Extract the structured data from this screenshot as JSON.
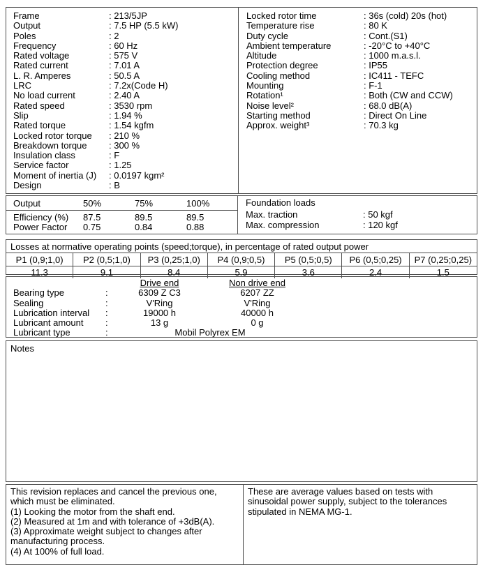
{
  "sep": ":",
  "colors": {
    "background": "#ffffff",
    "text": "#000000",
    "border": "#4d4d4d"
  },
  "general": {
    "left": [
      {
        "label": "Frame",
        "value": "213/5JP"
      },
      {
        "label": "Output",
        "value": "7.5 HP (5.5 kW)"
      },
      {
        "label": "Poles",
        "value": "2"
      },
      {
        "label": "Frequency",
        "value": "60 Hz"
      },
      {
        "label": "Rated voltage",
        "value": "575 V"
      },
      {
        "label": "Rated current",
        "value": "7.01 A"
      },
      {
        "label": "L. R. Amperes",
        "value": "50.5 A"
      },
      {
        "label": "LRC",
        "value": "7.2x(Code H)"
      },
      {
        "label": "No load current",
        "value": "2.40 A"
      },
      {
        "label": "Rated speed",
        "value": "3530 rpm"
      },
      {
        "label": "Slip",
        "value": "1.94 %"
      },
      {
        "label": "Rated torque",
        "value": "1.54 kgfm"
      },
      {
        "label": "Locked rotor torque",
        "value": "210 %"
      },
      {
        "label": "Breakdown torque",
        "value": "300 %"
      },
      {
        "label": "Insulation class",
        "value": "F"
      },
      {
        "label": "Service factor",
        "value": "1.25"
      },
      {
        "label": "Moment of inertia (J)",
        "value": "0.0197 kgm²"
      },
      {
        "label": "Design",
        "value": "B"
      }
    ],
    "right": [
      {
        "label": "Locked rotor time",
        "value": "36s (cold) 20s (hot)"
      },
      {
        "label": "Temperature rise",
        "value": "80 K"
      },
      {
        "label": "Duty cycle",
        "value": "Cont.(S1)"
      },
      {
        "label": "Ambient temperature",
        "value": "-20°C to +40°C"
      },
      {
        "label": "Altitude",
        "value": "1000 m.a.s.l."
      },
      {
        "label": "Protection degree",
        "value": "IP55"
      },
      {
        "label": "Cooling method",
        "value": "IC411 - TEFC"
      },
      {
        "label": "Mounting",
        "value": "F-1"
      },
      {
        "label": "Rotation¹",
        "value": "Both (CW and CCW)"
      },
      {
        "label": "Noise level²",
        "value": "68.0 dB(A)"
      },
      {
        "label": "Starting method",
        "value": "Direct On Line"
      },
      {
        "label": "Approx. weight³",
        "value": "70.3 kg"
      }
    ]
  },
  "performance": {
    "header": [
      "Output",
      "50%",
      "75%",
      "100%"
    ],
    "rows": [
      {
        "label": "Efficiency (%)",
        "values": [
          "87.5",
          "89.5",
          "89.5"
        ]
      },
      {
        "label": "Power Factor",
        "values": [
          "0.75",
          "0.84",
          "0.88"
        ]
      }
    ]
  },
  "foundation_loads": {
    "title": "Foundation loads",
    "rows": [
      {
        "label": "Max. traction",
        "value": "50 kgf"
      },
      {
        "label": "Max. compression",
        "value": "120 kgf"
      }
    ]
  },
  "losses": {
    "title": "Losses at normative operating points (speed;torque), in percentage of rated output power",
    "points": [
      {
        "header": "P1 (0,9;1,0)",
        "value": "11.3"
      },
      {
        "header": "P2 (0,5;1,0)",
        "value": "9.1"
      },
      {
        "header": "P3 (0,25;1,0)",
        "value": "8.4"
      },
      {
        "header": "P4 (0,9;0,5)",
        "value": "5.9"
      },
      {
        "header": "P5 (0,5;0,5)",
        "value": "3.6"
      },
      {
        "header": "P6 (0,5;0,25)",
        "value": "2.4"
      },
      {
        "header": "P7 (0,25;0,25)",
        "value": "1.5"
      }
    ]
  },
  "bearings": {
    "col_headers": [
      "Drive end",
      "Non drive end"
    ],
    "rows": [
      {
        "label": "Bearing type",
        "drive": "6309 Z C3",
        "non_drive": "6207 ZZ"
      },
      {
        "label": "Sealing",
        "drive": "V'Ring",
        "non_drive": "V'Ring"
      },
      {
        "label": "Lubrication interval",
        "drive": "19000 h",
        "non_drive": "40000 h"
      },
      {
        "label": "Lubricant amount",
        "drive": "13 g",
        "non_drive": "0 g"
      }
    ],
    "lubricant_type": {
      "label": "Lubricant type",
      "value": "Mobil Polyrex EM"
    }
  },
  "notes": {
    "title": "Notes",
    "content": ""
  },
  "footer": {
    "left_lines": [
      "This revision replaces and cancel the previous one, which must be eliminated.",
      "(1) Looking the motor from the shaft end.",
      "(2) Measured at 1m and with tolerance of +3dB(A).",
      "(3) Approximate weight subject to changes after manufacturing process.",
      "(4) At 100% of full load."
    ],
    "right_text": "These are average values based on tests with sinusoidal power supply, subject to the tolerances stipulated in NEMA MG-1."
  }
}
